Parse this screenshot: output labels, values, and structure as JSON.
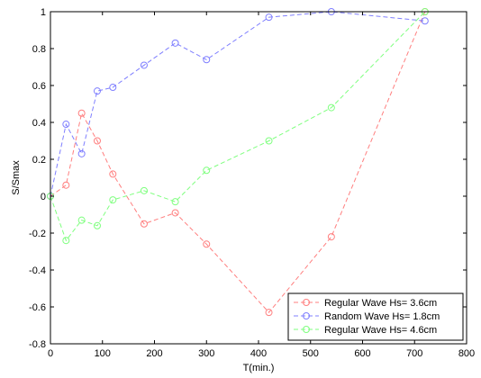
{
  "chart_data": {
    "type": "line",
    "title": "",
    "xlabel": "T(min.)",
    "ylabel": "S/Smax",
    "xlim": [
      0,
      800
    ],
    "ylim": [
      -0.8,
      1
    ],
    "xticks": [
      0,
      100,
      200,
      300,
      400,
      500,
      600,
      700,
      800
    ],
    "yticks": [
      -0.8,
      -0.6,
      -0.4,
      -0.2,
      0,
      0.2,
      0.4,
      0.6,
      0.8,
      1
    ],
    "xtick_labels": [
      "0",
      "100",
      "200",
      "300",
      "400",
      "500",
      "600",
      "700",
      "800"
    ],
    "ytick_labels": [
      "-0.8",
      "-0.6",
      "-0.4",
      "-0.2",
      "0",
      "0.2",
      "0.4",
      "0.6",
      "0.8",
      "1"
    ],
    "grid": false,
    "legend_position": "bottom-right",
    "series": [
      {
        "name": "Regular Wave Hs= 3.6cm",
        "color": "#ff7f7f",
        "marker": "circle",
        "linestyle": "dashed",
        "x": [
          0,
          30,
          60,
          90,
          120,
          180,
          240,
          300,
          420,
          540,
          720
        ],
        "y": [
          0,
          0.06,
          0.45,
          0.3,
          0.12,
          -0.15,
          -0.09,
          -0.26,
          -0.63,
          -0.22,
          1.0
        ]
      },
      {
        "name": "Random Wave Hs= 1.8cm",
        "color": "#7f7fff",
        "marker": "circle",
        "linestyle": "dashed",
        "x": [
          0,
          30,
          60,
          90,
          120,
          180,
          240,
          300,
          420,
          540,
          720
        ],
        "y": [
          0,
          0.39,
          0.23,
          0.57,
          0.59,
          0.71,
          0.83,
          0.74,
          0.97,
          1.0,
          0.95
        ]
      },
      {
        "name": "Regular Wave Hs= 4.6cm",
        "color": "#7fff7f",
        "marker": "circle",
        "linestyle": "dashed",
        "x": [
          0,
          30,
          60,
          90,
          120,
          180,
          240,
          300,
          420,
          540,
          720
        ],
        "y": [
          0,
          -0.24,
          -0.13,
          -0.16,
          -0.02,
          0.03,
          -0.03,
          0.14,
          0.3,
          0.48,
          1.0
        ]
      }
    ]
  }
}
